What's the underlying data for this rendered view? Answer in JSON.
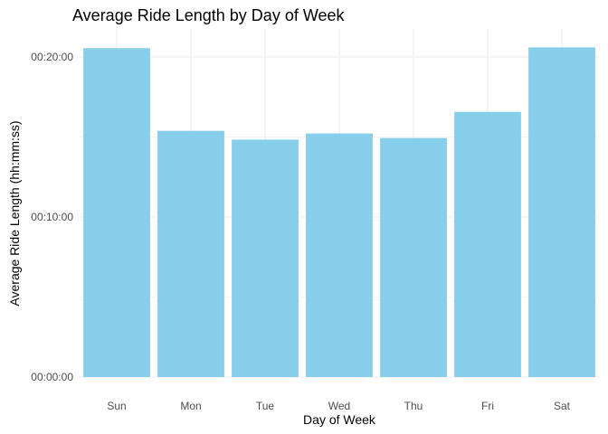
{
  "chart_data": {
    "type": "bar",
    "title": "Average Ride Length by Day of Week",
    "xlabel": "Day of Week",
    "ylabel": "Average Ride Length (hh:mm:ss)",
    "categories": [
      "Sun",
      "Mon",
      "Tue",
      "Wed",
      "Thu",
      "Fri",
      "Sat"
    ],
    "values_seconds": [
      1233,
      923,
      890,
      913,
      896,
      994,
      1236
    ],
    "values_labels": [
      "00:20:33",
      "00:15:23",
      "00:14:50",
      "00:15:13",
      "00:14:56",
      "00:16:34",
      "00:20:36"
    ],
    "ylim_seconds": [
      0,
      1305
    ],
    "y_ticks": [
      {
        "value": 0,
        "label": "00:00:00"
      },
      {
        "value": 600,
        "label": "00:10:00"
      },
      {
        "value": 1200,
        "label": "00:20:00"
      }
    ],
    "y_minor_ticks": [
      300,
      900
    ],
    "bar_color": "#87CEEB",
    "grid": true,
    "grid_color": "#ebebeb",
    "legend": "none"
  }
}
